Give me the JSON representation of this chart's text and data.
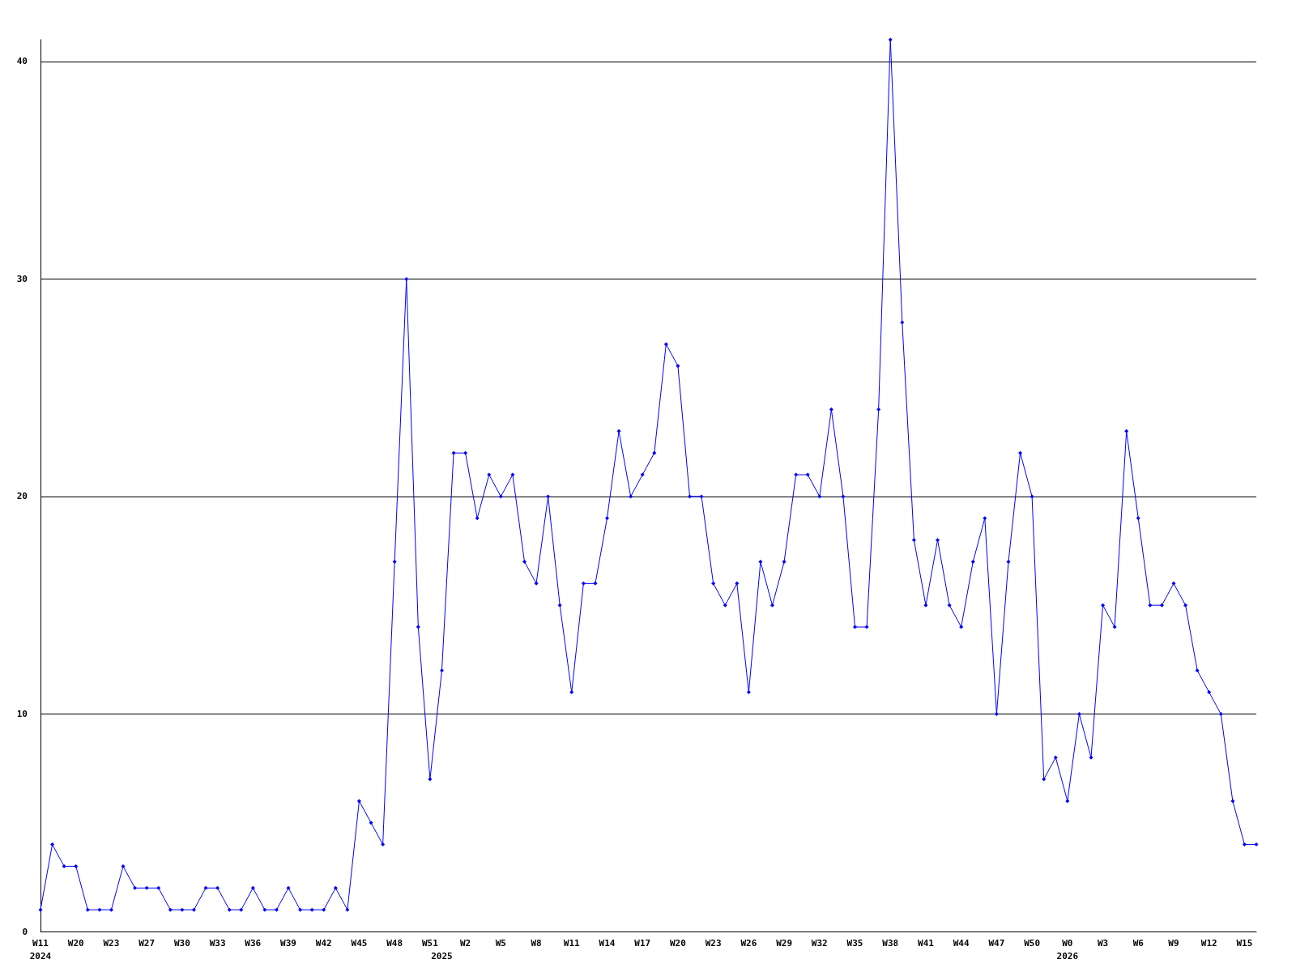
{
  "chart_data": {
    "type": "line",
    "categories": [
      "W11\n2024",
      null,
      null,
      "W20",
      null,
      null,
      "W23",
      null,
      null,
      "W27",
      null,
      null,
      "W30",
      null,
      null,
      "W33",
      null,
      null,
      "W36",
      null,
      null,
      "W39",
      null,
      null,
      "W42",
      null,
      null,
      "W45",
      null,
      null,
      "W48",
      null,
      null,
      "W51",
      "\n2025",
      null,
      "W2",
      null,
      null,
      "W5",
      null,
      null,
      "W8",
      null,
      null,
      "W11",
      null,
      null,
      "W14",
      null,
      null,
      "W17",
      null,
      null,
      "W20",
      null,
      null,
      "W23",
      null,
      null,
      "W26",
      null,
      null,
      "W29",
      null,
      null,
      "W32",
      null,
      null,
      "W35",
      null,
      null,
      "W38",
      null,
      null,
      "W41",
      null,
      null,
      "W44",
      null,
      null,
      "W47",
      null,
      null,
      "W50",
      null,
      null,
      "W0\n2026",
      null,
      null,
      "W3",
      null,
      null,
      "W6",
      null,
      null,
      "W9",
      null,
      null,
      "W12",
      null,
      null,
      "W15",
      null
    ],
    "series": [
      {
        "color": "#0000ff",
        "values": [
          1,
          4,
          3,
          3,
          1,
          1,
          1,
          3,
          2,
          2,
          2,
          1,
          1,
          1,
          2,
          2,
          1,
          1,
          2,
          1,
          1,
          2,
          1,
          1,
          1,
          2,
          1,
          6,
          5,
          4,
          17,
          30,
          14,
          7,
          12,
          22,
          22,
          19,
          21,
          20,
          21,
          17,
          16,
          20,
          15,
          11,
          16,
          16,
          19,
          23,
          20,
          21,
          22,
          27,
          26,
          20,
          20,
          16,
          15,
          16,
          11,
          17,
          15,
          17,
          21,
          21,
          20,
          24,
          20,
          14,
          14,
          24,
          41,
          28,
          18,
          15,
          18,
          15,
          14,
          17,
          19,
          10,
          17,
          22,
          20,
          7,
          8,
          6,
          10,
          8,
          15,
          14,
          23,
          19,
          15,
          15,
          16,
          15,
          12,
          11,
          10,
          6,
          4,
          4
        ]
      }
    ],
    "ylim": [
      0,
      41
    ],
    "yticks": [
      0,
      10,
      20,
      30,
      40
    ],
    "grid": "y",
    "marker": "diamond",
    "line_style": "solid"
  }
}
